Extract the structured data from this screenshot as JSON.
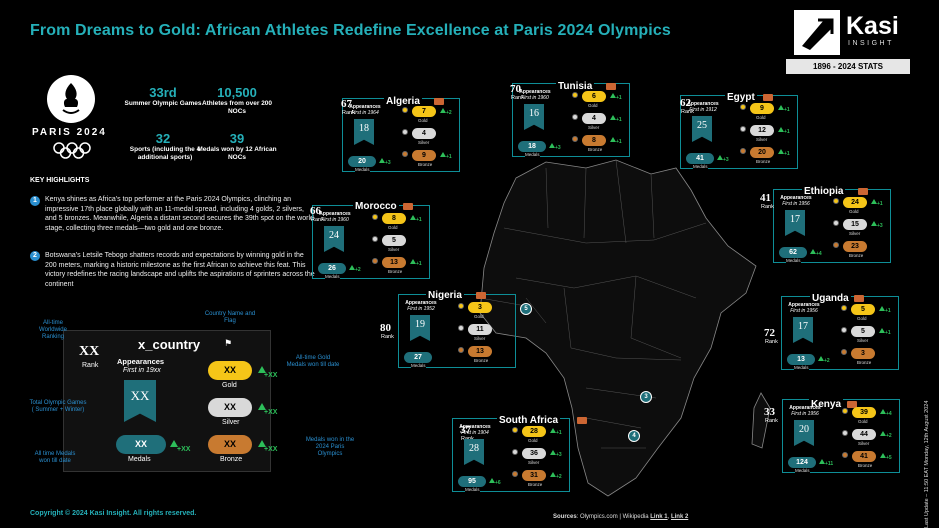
{
  "header": {
    "title": "From Dreams to Gold: African Athletes Redefine Excellence at Paris 2024 Olympics",
    "logo_name": "Kasi",
    "logo_sub": "INSIGHT",
    "stats_range": "1896 - 2024 STATS"
  },
  "paris": {
    "label": "PARIS 2024",
    "stats": [
      {
        "num": "33rd",
        "label": "Summer Olympic Games"
      },
      {
        "num": "10,500",
        "label": "Athletes from over 200 NOCs"
      },
      {
        "num": "32",
        "label": "Sports (including the 4 additional sports)"
      },
      {
        "num": "39",
        "label": "Medals won by 12 African NOCs"
      }
    ]
  },
  "highlights": {
    "heading": "KEY HIGHLIGHTS",
    "items": [
      {
        "n": "1",
        "text": "Kenya shines as Africa's top performer at the Paris 2024 Olympics, clinching an impressive 17th place globally with an 11-medal spread, including 4 golds, 2 silvers, and 5 bronzes. Meanwhile, Algeria  a distant second secures the 39th spot on the world stage, collecting three medals—two gold and one bronze."
      },
      {
        "n": "2",
        "text": "Botswana's Letsile Tebogo shatters records and expectations by winning gold in the 200 meters, marking a historic milestone as the first African to achieve this feat. This victory redefines the racing landscape and uplifts the aspirations of sprinters across the continent"
      }
    ]
  },
  "legend": {
    "rank": "XX",
    "rank_label": "Rank",
    "country": "x_country",
    "appearances": "Appearances",
    "first_in": "First in 19xx",
    "banner": "XX",
    "gold": "XX",
    "silver": "XX",
    "bronze": "XX",
    "medals": "XX",
    "gold_label": "Gold",
    "silver_label": "Silver",
    "bronze_label": "Bronze",
    "medals_label": "Medals",
    "delta": "+XX",
    "ann_ranking": "All-time Worldwide Ranking",
    "ann_name": "Country Name and Flag",
    "ann_gold": "All-time Gold Medals won till date",
    "ann_games": "Total Olympic Games ( Summer + Winter)",
    "ann_total": "All time Medals won till date",
    "ann_paris": "Medals won in the 2024 Paris Olympics"
  },
  "labels": {
    "appearances": "Appearances",
    "rank": "Rank",
    "gold": "Gold",
    "silver": "Silver",
    "bronze": "Bronze",
    "medals": "Medals"
  },
  "countries": [
    {
      "name": "Algeria",
      "rank": "67",
      "first": "First in 1964",
      "appearances": "18",
      "gold": "7",
      "silver": "4",
      "bronze": "9",
      "medals": "20",
      "d_gold": "+2",
      "d_silver": "",
      "d_bronze": "+1",
      "d_medals": "+3"
    },
    {
      "name": "Tunisia",
      "rank": "70",
      "first": "First in 1960",
      "appearances": "16",
      "gold": "6",
      "silver": "4",
      "bronze": "8",
      "medals": "18",
      "d_gold": "+1",
      "d_silver": "+1",
      "d_bronze": "+1",
      "d_medals": "+3"
    },
    {
      "name": "Egypt",
      "rank": "62",
      "first": "First in 1912",
      "appearances": "25",
      "gold": "9",
      "silver": "12",
      "bronze": "20",
      "medals": "41",
      "d_gold": "+1",
      "d_silver": "+1",
      "d_bronze": "+1",
      "d_medals": "+3"
    },
    {
      "name": "Morocco",
      "rank": "66",
      "first": "First in 1960",
      "appearances": "24",
      "gold": "8",
      "silver": "5",
      "bronze": "13",
      "medals": "26",
      "d_gold": "+1",
      "d_silver": "",
      "d_bronze": "+1",
      "d_medals": "+2"
    },
    {
      "name": "Ethiopia",
      "rank": "41",
      "first": "First in 1956",
      "appearances": "17",
      "gold": "24",
      "silver": "15",
      "bronze": "23",
      "medals": "62",
      "d_gold": "+1",
      "d_silver": "+3",
      "d_bronze": "",
      "d_medals": "+4"
    },
    {
      "name": "Nigeria",
      "rank": "80",
      "first": "First in 1952",
      "appearances": "19",
      "gold": "3",
      "silver": "11",
      "bronze": "13",
      "medals": "27",
      "d_gold": "",
      "d_silver": "",
      "d_bronze": "",
      "d_medals": ""
    },
    {
      "name": "Uganda",
      "rank": "72",
      "first": "First in 1956",
      "appearances": "17",
      "gold": "5",
      "silver": "5",
      "bronze": "3",
      "medals": "13",
      "d_gold": "+1",
      "d_silver": "+1",
      "d_bronze": "",
      "d_medals": "+2"
    },
    {
      "name": "South Africa",
      "rank": "37",
      "first": "First in 1904",
      "appearances": "28",
      "gold": "28",
      "silver": "36",
      "bronze": "31",
      "medals": "95",
      "d_gold": "+1",
      "d_silver": "+3",
      "d_bronze": "+2",
      "d_medals": "+6"
    },
    {
      "name": "Kenya",
      "rank": "33",
      "first": "First in 1956",
      "appearances": "20",
      "gold": "39",
      "silver": "44",
      "bronze": "41",
      "medals": "124",
      "d_gold": "+4",
      "d_silver": "+2",
      "d_bronze": "+5",
      "d_medals": "+11"
    }
  ],
  "map_pins": [
    {
      "n": "5"
    },
    {
      "n": "3"
    },
    {
      "n": "4"
    }
  ],
  "footer": {
    "copyright": "Copyright © 2024 Kasi Insight. All rights reserved.",
    "sources_label": "Sources",
    "sources_text": ": Olympics.com  |  Wikipedia ",
    "link1": "Link 1",
    "link2": "Link 2",
    "updated": "Last Update – 11:50 EAT Monday, 12th August 2024"
  }
}
